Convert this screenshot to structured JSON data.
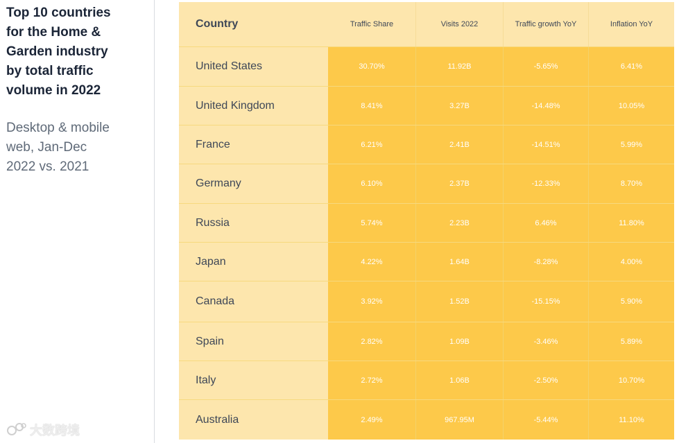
{
  "title": "Top 10 countries\nfor the Home &\nGarden industry\nby total traffic\nvolume in 2022",
  "subtitle": "Desktop & mobile\nweb, Jan-Dec\n2022 vs. 2021",
  "watermark": {
    "text": "大数跨境",
    "icon": "brand-logo-icon"
  },
  "colors": {
    "header_bg": "#fde6ad",
    "value_bg": "#fdc94a",
    "title": "#1b2537",
    "subtitle": "#5f6a78"
  },
  "chart_data": {
    "type": "table",
    "title": "Top 10 countries for the Home & Garden industry by total traffic volume in 2022",
    "subtitle": "Desktop & mobile web, Jan-Dec 2022 vs. 2021",
    "columns": [
      "Country",
      "Traffic Share",
      "Visits 2022",
      "Traffic growth YoY",
      "Inflation YoY"
    ],
    "rows": [
      [
        "United States",
        "30.70%",
        "11.92B",
        "-5.65%",
        "6.41%"
      ],
      [
        "United Kingdom",
        "8.41%",
        "3.27B",
        "-14.48%",
        "10.05%"
      ],
      [
        "France",
        "6.21%",
        "2.41B",
        "-14.51%",
        "5.99%"
      ],
      [
        "Germany",
        "6.10%",
        "2.37B",
        "-12.33%",
        "8.70%"
      ],
      [
        "Russia",
        "5.74%",
        "2.23B",
        "6.46%",
        "11.80%"
      ],
      [
        "Japan",
        "4.22%",
        "1.64B",
        "-8.28%",
        "4.00%"
      ],
      [
        "Canada",
        "3.92%",
        "1.52B",
        "-15.15%",
        "5.90%"
      ],
      [
        "Spain",
        "2.82%",
        "1.09B",
        "-3.46%",
        "5.89%"
      ],
      [
        "Italy",
        "2.72%",
        "1.06B",
        "-2.50%",
        "10.70%"
      ],
      [
        "Australia",
        "2.49%",
        "967.95M",
        "-5.44%",
        "11.10%"
      ]
    ]
  }
}
